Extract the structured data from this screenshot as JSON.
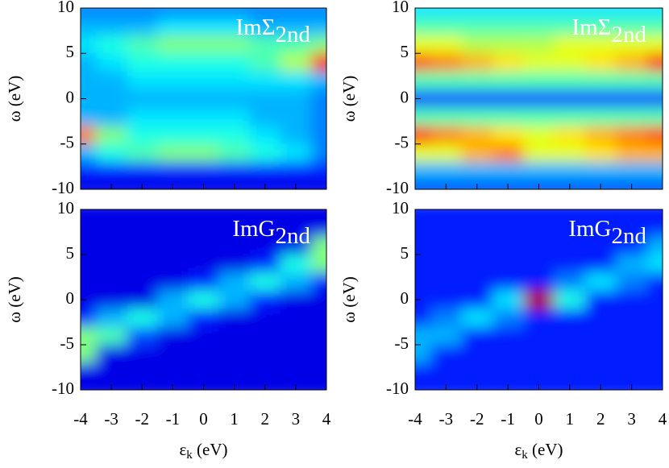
{
  "chart_data": [
    {
      "type": "heatmap",
      "label": "ImΣ",
      "label_sub": "2nd",
      "ylabel": "ω (eV)",
      "colormap": "jet",
      "xlim": [
        -4,
        4
      ],
      "ylim": [
        -10,
        10
      ],
      "xticks": [
        -4,
        -3,
        -2,
        -1,
        0,
        1,
        2,
        3,
        4
      ],
      "yticks": [
        -10,
        -5,
        0,
        5,
        10
      ],
      "x": [
        -4,
        -3,
        -2,
        -1,
        0,
        1,
        2,
        3,
        4
      ],
      "y": [
        10,
        8,
        6,
        4,
        2,
        0,
        -2,
        -4,
        -6,
        -8,
        -10
      ],
      "values": [
        [
          0.25,
          0.25,
          0.25,
          0.25,
          0.25,
          0.25,
          0.25,
          0.25,
          0.25
        ],
        [
          0.3,
          0.3,
          0.3,
          0.35,
          0.35,
          0.35,
          0.3,
          0.3,
          0.3
        ],
        [
          0.35,
          0.4,
          0.45,
          0.5,
          0.5,
          0.5,
          0.45,
          0.45,
          0.5
        ],
        [
          0.3,
          0.35,
          0.4,
          0.4,
          0.4,
          0.4,
          0.45,
          0.55,
          0.85
        ],
        [
          0.3,
          0.3,
          0.35,
          0.35,
          0.35,
          0.35,
          0.35,
          0.35,
          0.3
        ],
        [
          0.3,
          0.3,
          0.3,
          0.3,
          0.3,
          0.3,
          0.3,
          0.3,
          0.25
        ],
        [
          0.3,
          0.3,
          0.35,
          0.35,
          0.35,
          0.35,
          0.3,
          0.3,
          0.25
        ],
        [
          0.75,
          0.5,
          0.4,
          0.4,
          0.4,
          0.4,
          0.35,
          0.3,
          0.25
        ],
        [
          0.3,
          0.4,
          0.45,
          0.5,
          0.5,
          0.45,
          0.4,
          0.35,
          0.25
        ],
        [
          0.15,
          0.15,
          0.15,
          0.15,
          0.15,
          0.15,
          0.15,
          0.15,
          0.15
        ],
        [
          0.1,
          0.1,
          0.1,
          0.1,
          0.1,
          0.1,
          0.1,
          0.1,
          0.1
        ]
      ]
    },
    {
      "type": "heatmap",
      "label": "ImΣ",
      "label_sub": "2nd",
      "ylabel": "ω (eV)",
      "colormap": "jet",
      "xlim": [
        -4,
        4
      ],
      "ylim": [
        -10,
        10
      ],
      "xticks": [
        -4,
        -3,
        -2,
        -1,
        0,
        1,
        2,
        3,
        4
      ],
      "yticks": [
        -10,
        -5,
        0,
        5,
        10
      ],
      "x": [
        -4,
        -3,
        -2,
        -1,
        0,
        1,
        2,
        3,
        4
      ],
      "y": [
        10,
        8,
        6,
        4,
        2,
        0,
        -2,
        -4,
        -6,
        -8,
        -10
      ],
      "values": [
        [
          0.35,
          0.35,
          0.35,
          0.35,
          0.35,
          0.35,
          0.35,
          0.35,
          0.35
        ],
        [
          0.45,
          0.45,
          0.45,
          0.45,
          0.45,
          0.45,
          0.45,
          0.45,
          0.45
        ],
        [
          0.6,
          0.6,
          0.55,
          0.55,
          0.55,
          0.6,
          0.6,
          0.6,
          0.6
        ],
        [
          0.8,
          0.75,
          0.7,
          0.65,
          0.6,
          0.6,
          0.65,
          0.7,
          0.85
        ],
        [
          0.45,
          0.45,
          0.45,
          0.45,
          0.45,
          0.45,
          0.45,
          0.45,
          0.45
        ],
        [
          0.2,
          0.2,
          0.2,
          0.2,
          0.2,
          0.2,
          0.2,
          0.2,
          0.2
        ],
        [
          0.45,
          0.45,
          0.45,
          0.45,
          0.45,
          0.45,
          0.45,
          0.45,
          0.45
        ],
        [
          0.85,
          0.75,
          0.7,
          0.65,
          0.6,
          0.65,
          0.7,
          0.75,
          0.8
        ],
        [
          0.6,
          0.6,
          0.7,
          0.75,
          0.6,
          0.6,
          0.65,
          0.7,
          0.7
        ],
        [
          0.3,
          0.3,
          0.3,
          0.3,
          0.3,
          0.3,
          0.3,
          0.3,
          0.3
        ],
        [
          0.2,
          0.2,
          0.2,
          0.2,
          0.2,
          0.2,
          0.2,
          0.2,
          0.2
        ]
      ]
    },
    {
      "type": "heatmap",
      "label": "ImG",
      "label_sub": "2nd",
      "ylabel": "ω (eV)",
      "xlabel": [
        "ε",
        "k",
        " (eV)"
      ],
      "colormap": "jet",
      "xlim": [
        -4,
        4
      ],
      "ylim": [
        -10,
        10
      ],
      "xticks": [
        -4,
        -3,
        -2,
        -1,
        0,
        1,
        2,
        3,
        4
      ],
      "yticks": [
        -10,
        -5,
        0,
        5,
        10
      ],
      "x": [
        -4,
        -3,
        -2,
        -1,
        0,
        1,
        2,
        3,
        4
      ],
      "y": [
        10,
        8,
        6,
        4,
        2,
        0,
        -2,
        -4,
        -6,
        -8,
        -10
      ],
      "values": [
        [
          0.1,
          0.1,
          0.1,
          0.1,
          0.1,
          0.1,
          0.1,
          0.1,
          0.1
        ],
        [
          0.1,
          0.1,
          0.1,
          0.1,
          0.1,
          0.1,
          0.1,
          0.1,
          0.1
        ],
        [
          0.1,
          0.1,
          0.1,
          0.1,
          0.1,
          0.1,
          0.1,
          0.1,
          0.5
        ],
        [
          0.1,
          0.1,
          0.1,
          0.1,
          0.1,
          0.1,
          0.15,
          0.4,
          0.5
        ],
        [
          0.1,
          0.1,
          0.1,
          0.1,
          0.15,
          0.3,
          0.4,
          0.3,
          0.15
        ],
        [
          0.1,
          0.1,
          0.1,
          0.3,
          0.4,
          0.3,
          0.15,
          0.1,
          0.1
        ],
        [
          0.15,
          0.3,
          0.4,
          0.3,
          0.15,
          0.1,
          0.1,
          0.1,
          0.1
        ],
        [
          0.5,
          0.45,
          0.2,
          0.1,
          0.1,
          0.1,
          0.1,
          0.1,
          0.1
        ],
        [
          0.5,
          0.1,
          0.1,
          0.1,
          0.1,
          0.1,
          0.1,
          0.1,
          0.1
        ],
        [
          0.1,
          0.1,
          0.1,
          0.1,
          0.1,
          0.1,
          0.1,
          0.1,
          0.1
        ],
        [
          0.1,
          0.1,
          0.1,
          0.1,
          0.1,
          0.1,
          0.1,
          0.1,
          0.1
        ]
      ]
    },
    {
      "type": "heatmap",
      "label": "ImG",
      "label_sub": "2nd",
      "ylabel": "ω (eV)",
      "xlabel": [
        "ε",
        "k",
        " (eV)"
      ],
      "colormap": "jet",
      "xlim": [
        -4,
        4
      ],
      "ylim": [
        -10,
        10
      ],
      "xticks": [
        -4,
        -3,
        -2,
        -1,
        0,
        1,
        2,
        3,
        4
      ],
      "yticks": [
        -10,
        -5,
        0,
        5,
        10
      ],
      "x": [
        -4,
        -3,
        -2,
        -1,
        0,
        1,
        2,
        3,
        4
      ],
      "y": [
        10,
        8,
        6,
        4,
        2,
        0,
        -2,
        -4,
        -6,
        -8,
        -10
      ],
      "values": [
        [
          0.15,
          0.15,
          0.15,
          0.15,
          0.15,
          0.15,
          0.15,
          0.15,
          0.15
        ],
        [
          0.15,
          0.15,
          0.15,
          0.15,
          0.15,
          0.15,
          0.15,
          0.15,
          0.15
        ],
        [
          0.15,
          0.15,
          0.15,
          0.15,
          0.15,
          0.15,
          0.15,
          0.15,
          0.3
        ],
        [
          0.15,
          0.15,
          0.15,
          0.15,
          0.15,
          0.15,
          0.15,
          0.3,
          0.35
        ],
        [
          0.15,
          0.15,
          0.15,
          0.15,
          0.15,
          0.25,
          0.35,
          0.25,
          0.15
        ],
        [
          0.15,
          0.15,
          0.15,
          0.35,
          0.95,
          0.4,
          0.15,
          0.15,
          0.15
        ],
        [
          0.15,
          0.25,
          0.35,
          0.25,
          0.15,
          0.15,
          0.15,
          0.15,
          0.15
        ],
        [
          0.3,
          0.3,
          0.15,
          0.15,
          0.15,
          0.15,
          0.15,
          0.15,
          0.15
        ],
        [
          0.3,
          0.15,
          0.15,
          0.15,
          0.15,
          0.15,
          0.15,
          0.15,
          0.15
        ],
        [
          0.15,
          0.15,
          0.15,
          0.15,
          0.15,
          0.15,
          0.15,
          0.15,
          0.15
        ],
        [
          0.15,
          0.15,
          0.15,
          0.15,
          0.15,
          0.15,
          0.15,
          0.15,
          0.15
        ]
      ]
    }
  ]
}
